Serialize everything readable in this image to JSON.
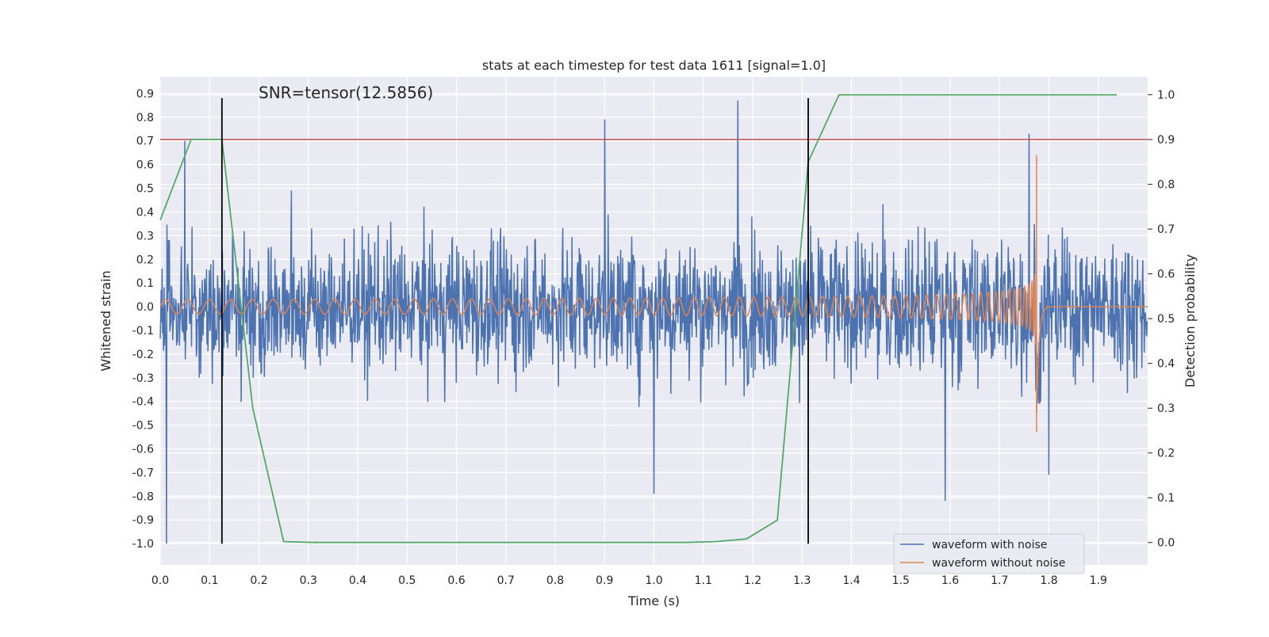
{
  "chart_data": {
    "type": "line",
    "title": "stats at each timestep for test data 1611 [signal=1.0]",
    "annotation": "SNR=tensor(12.5856)",
    "xlabel": "Time (s)",
    "ylabel": "Whitened strain",
    "y2label": "Detection probability",
    "xlim": [
      0.0,
      2.0
    ],
    "ylim": [
      -1.09,
      0.97
    ],
    "y2lim": [
      -0.05,
      1.04
    ],
    "xticks": [
      "0.0",
      "0.1",
      "0.2",
      "0.3",
      "0.4",
      "0.5",
      "0.6",
      "0.7",
      "0.8",
      "0.9",
      "1.0",
      "1.1",
      "1.2",
      "1.3",
      "1.4",
      "1.5",
      "1.6",
      "1.7",
      "1.8",
      "1.9"
    ],
    "yticks": [
      "0.9",
      "0.8",
      "0.7",
      "0.6",
      "0.5",
      "0.4",
      "0.3",
      "0.2",
      "0.1",
      "0.0",
      "-0.1",
      "-0.2",
      "-0.3",
      "-0.4",
      "-0.5",
      "-0.6",
      "-0.7",
      "-0.8",
      "-0.9",
      "-1.0"
    ],
    "y2ticks": [
      "0.0",
      "0.1",
      "0.2",
      "0.3",
      "0.4",
      "0.5",
      "0.6",
      "0.7",
      "0.8",
      "0.9",
      "1.0"
    ],
    "grid": true,
    "legend_position": "lower-right",
    "series": [
      {
        "name": "waveform with noise",
        "axis": "left",
        "color": "#4c72b0",
        "kind": "noise",
        "sample_count": 2048,
        "envelope": [
          -1.0,
          0.87
        ],
        "notable_peaks": [
          [
            0.013,
            -1.0
          ],
          [
            0.05,
            0.7
          ],
          [
            0.9,
            0.79
          ],
          [
            1.0,
            -0.79
          ],
          [
            1.17,
            0.87
          ],
          [
            1.59,
            -0.82
          ],
          [
            1.76,
            0.73
          ],
          [
            1.8,
            -0.71
          ]
        ]
      },
      {
        "name": "waveform without noise",
        "axis": "left",
        "color": "#dd8452",
        "kind": "chirp",
        "merger_time": 1.775,
        "start_amplitude": 0.03,
        "peak_values": [
          0.64,
          -0.53
        ]
      },
      {
        "axis": "right",
        "color": "#55a868",
        "kind": "probability",
        "x": [
          0.0,
          0.0625,
          0.125,
          0.1875,
          0.25,
          0.3125,
          0.375,
          0.4375,
          0.5,
          0.5625,
          0.625,
          0.6875,
          0.75,
          0.8125,
          0.875,
          0.9375,
          1.0,
          1.0625,
          1.125,
          1.1875,
          1.25,
          1.3125,
          1.375,
          1.4375,
          1.5,
          1.5625,
          1.625,
          1.6875,
          1.75,
          1.8125,
          1.875,
          1.9375
        ],
        "values": [
          0.72,
          0.9,
          0.9,
          0.3,
          0.002,
          0.0,
          0.0,
          0.0,
          0.0,
          0.0,
          0.0,
          0.0,
          0.0,
          0.0,
          0.0,
          0.0,
          0.0,
          0.0,
          0.002,
          0.008,
          0.05,
          0.85,
          1.0,
          1.0,
          1.0,
          1.0,
          1.0,
          1.0,
          1.0,
          1.0,
          1.0,
          1.0
        ]
      }
    ],
    "threshold": {
      "axis": "right",
      "value": 0.9,
      "color": "#c44e52"
    },
    "vertical_markers": {
      "x": [
        0.125,
        1.3125
      ],
      "from": -1.0,
      "to": 0.88,
      "color": "#000000"
    }
  }
}
